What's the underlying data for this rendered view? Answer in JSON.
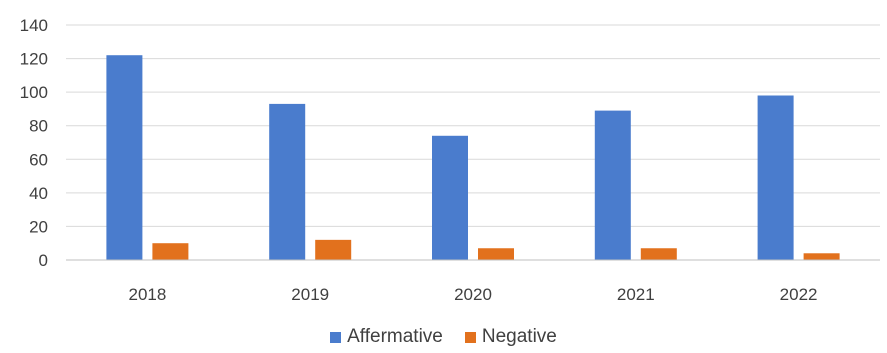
{
  "chart_data": {
    "type": "bar",
    "categories": [
      "2018",
      "2019",
      "2020",
      "2021",
      "2022"
    ],
    "series": [
      {
        "name": "Affermative",
        "values": [
          122,
          93,
          74,
          89,
          98
        ],
        "color": "#4a7ccd"
      },
      {
        "name": "Negative",
        "values": [
          10,
          12,
          7,
          7,
          4
        ],
        "color": "#e2711d"
      }
    ],
    "ylim": [
      0,
      140
    ],
    "yticks": [
      0,
      20,
      40,
      60,
      80,
      100,
      120,
      140
    ],
    "grid": true,
    "legend_position": "bottom"
  }
}
